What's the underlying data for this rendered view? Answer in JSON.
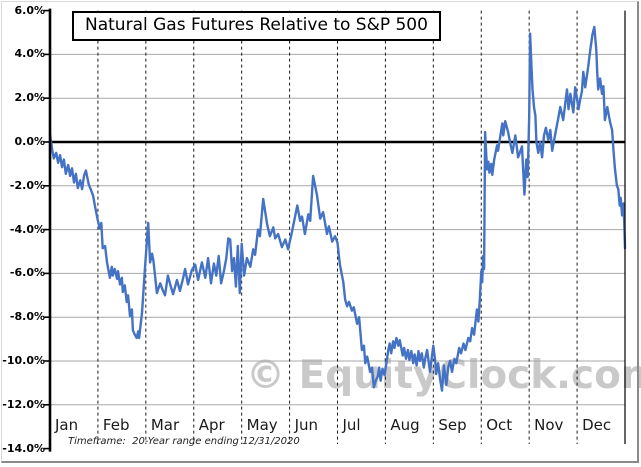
{
  "title": "Natural Gas Futures Relative to S&P 500",
  "footnote": "Timeframe:  20-Year range ending 12/31/2020",
  "watermark": "© EquityClock.com",
  "colors": {
    "line": "#4472C4",
    "grid": "#A8A8A8",
    "zero_line": "#000000",
    "axis": "#000000",
    "month_dashed": "#1A1A1A",
    "watermark": "#C9C9C9",
    "text": "#000000"
  },
  "chart_data": {
    "type": "line",
    "title": "Natural Gas Futures Relative to S&P 500",
    "xlabel": "",
    "ylabel": "",
    "x_categories": [
      "Jan",
      "Feb",
      "Mar",
      "Apr",
      "May",
      "Jun",
      "Jul",
      "Aug",
      "Sep",
      "Oct",
      "Nov",
      "Dec"
    ],
    "y_tick_labels": [
      "6.0%",
      "4.0%",
      "2.0%",
      "0.0%",
      "-2.0%",
      "-4.0%",
      "-6.0%",
      "-8.0%",
      "-10.0%",
      "-12.0%",
      "-14.0%"
    ],
    "y_tick_values": [
      6,
      4,
      2,
      0,
      -2,
      -4,
      -6,
      -8,
      -10,
      -12,
      -14
    ],
    "ylim": [
      -14,
      6
    ],
    "x_unit": "months 0-12 across one year",
    "y_unit": "percent relative performance",
    "grid": {
      "horizontal": true,
      "vertical": "dashed month boundaries",
      "zero_line_bold": true
    },
    "legend_position": "none",
    "annotations": [
      "© EquityClock.com watermark",
      "Timeframe:  20-Year range ending 12/31/2020"
    ],
    "series": [
      {
        "color": "#4472C4",
        "points": [
          [
            0.0,
            0.35
          ],
          [
            0.03,
            -0.1
          ],
          [
            0.05,
            -0.4
          ],
          [
            0.08,
            -0.75
          ],
          [
            0.13,
            -0.5
          ],
          [
            0.17,
            -0.95
          ],
          [
            0.21,
            -0.6
          ],
          [
            0.25,
            -1.15
          ],
          [
            0.29,
            -0.8
          ],
          [
            0.33,
            -1.45
          ],
          [
            0.38,
            -1.05
          ],
          [
            0.42,
            -1.55
          ],
          [
            0.46,
            -1.2
          ],
          [
            0.5,
            -1.85
          ],
          [
            0.54,
            -1.45
          ],
          [
            0.58,
            -2.1
          ],
          [
            0.63,
            -1.75
          ],
          [
            0.67,
            -2.15
          ],
          [
            0.71,
            -1.55
          ],
          [
            0.75,
            -1.3
          ],
          [
            0.81,
            -1.95
          ],
          [
            0.85,
            -2.15
          ],
          [
            0.9,
            -2.45
          ],
          [
            0.95,
            -3.05
          ],
          [
            1.0,
            -3.6
          ],
          [
            1.04,
            -3.95
          ],
          [
            1.07,
            -3.7
          ],
          [
            1.1,
            -4.85
          ],
          [
            1.15,
            -4.75
          ],
          [
            1.19,
            -5.5
          ],
          [
            1.25,
            -6.2
          ],
          [
            1.29,
            -5.7
          ],
          [
            1.31,
            -6.1
          ],
          [
            1.35,
            -5.8
          ],
          [
            1.4,
            -6.25
          ],
          [
            1.42,
            -5.9
          ],
          [
            1.46,
            -6.5
          ],
          [
            1.5,
            -6.2
          ],
          [
            1.52,
            -6.85
          ],
          [
            1.56,
            -6.55
          ],
          [
            1.6,
            -7.3
          ],
          [
            1.63,
            -7.0
          ],
          [
            1.67,
            -7.95
          ],
          [
            1.71,
            -7.65
          ],
          [
            1.73,
            -8.6
          ],
          [
            1.77,
            -8.8
          ],
          [
            1.81,
            -8.95
          ],
          [
            1.84,
            -8.65
          ],
          [
            1.86,
            -8.95
          ],
          [
            1.92,
            -7.8
          ],
          [
            1.95,
            -6.85
          ],
          [
            1.98,
            -5.8
          ],
          [
            2.05,
            -3.7
          ],
          [
            2.09,
            -5.5
          ],
          [
            2.13,
            -5.1
          ],
          [
            2.16,
            -5.45
          ],
          [
            2.23,
            -6.9
          ],
          [
            2.3,
            -6.45
          ],
          [
            2.35,
            -6.75
          ],
          [
            2.4,
            -7.0
          ],
          [
            2.46,
            -6.1
          ],
          [
            2.52,
            -6.6
          ],
          [
            2.57,
            -6.95
          ],
          [
            2.65,
            -6.3
          ],
          [
            2.71,
            -6.8
          ],
          [
            2.78,
            -6.2
          ],
          [
            2.82,
            -5.8
          ],
          [
            2.88,
            -6.5
          ],
          [
            2.96,
            -5.85
          ],
          [
            3.03,
            -5.6
          ],
          [
            3.09,
            -6.3
          ],
          [
            3.17,
            -5.5
          ],
          [
            3.24,
            -6.2
          ],
          [
            3.3,
            -5.3
          ],
          [
            3.36,
            -6.45
          ],
          [
            3.42,
            -5.55
          ],
          [
            3.47,
            -6.1
          ],
          [
            3.52,
            -5.2
          ],
          [
            3.57,
            -6.45
          ],
          [
            3.63,
            -5.9
          ],
          [
            3.68,
            -5.3
          ],
          [
            3.72,
            -4.4
          ],
          [
            3.76,
            -4.45
          ],
          [
            3.8,
            -5.9
          ],
          [
            3.84,
            -5.3
          ],
          [
            3.88,
            -6.6
          ],
          [
            3.92,
            -4.75
          ],
          [
            3.96,
            -6.9
          ],
          [
            4.0,
            -4.65
          ],
          [
            4.05,
            -6.1
          ],
          [
            4.11,
            -5.3
          ],
          [
            4.18,
            -5.7
          ],
          [
            4.24,
            -4.9
          ],
          [
            4.28,
            -5.15
          ],
          [
            4.34,
            -4.0
          ],
          [
            4.38,
            -4.3
          ],
          [
            4.45,
            -2.6
          ],
          [
            4.53,
            -3.75
          ],
          [
            4.59,
            -4.3
          ],
          [
            4.66,
            -3.9
          ],
          [
            4.7,
            -4.4
          ],
          [
            4.76,
            -4.2
          ],
          [
            4.84,
            -4.8
          ],
          [
            4.91,
            -4.45
          ],
          [
            4.97,
            -4.9
          ],
          [
            5.05,
            -4.1
          ],
          [
            5.16,
            -2.9
          ],
          [
            5.22,
            -3.6
          ],
          [
            5.26,
            -3.4
          ],
          [
            5.32,
            -4.2
          ],
          [
            5.39,
            -3.3
          ],
          [
            5.43,
            -3.6
          ],
          [
            5.49,
            -1.55
          ],
          [
            5.57,
            -2.4
          ],
          [
            5.64,
            -3.5
          ],
          [
            5.7,
            -3.2
          ],
          [
            5.78,
            -4.2
          ],
          [
            5.82,
            -3.85
          ],
          [
            5.89,
            -4.55
          ],
          [
            5.95,
            -4.3
          ],
          [
            6.0,
            -4.6
          ],
          [
            6.05,
            -5.6
          ],
          [
            6.12,
            -6.4
          ],
          [
            6.16,
            -7.2
          ],
          [
            6.2,
            -7.5
          ],
          [
            6.24,
            -7.3
          ],
          [
            6.3,
            -7.7
          ],
          [
            6.34,
            -7.55
          ],
          [
            6.41,
            -8.3
          ],
          [
            6.45,
            -8.0
          ],
          [
            6.51,
            -9.5
          ],
          [
            6.55,
            -9.3
          ],
          [
            6.58,
            -10.1
          ],
          [
            6.62,
            -9.8
          ],
          [
            6.68,
            -10.5
          ],
          [
            6.72,
            -10.3
          ],
          [
            6.76,
            -11.2
          ],
          [
            6.8,
            -10.9
          ],
          [
            6.84,
            -10.7
          ],
          [
            6.87,
            -10.3
          ],
          [
            6.9,
            -10.9
          ],
          [
            6.94,
            -10.35
          ],
          [
            6.98,
            -10.65
          ],
          [
            7.02,
            -10.1
          ],
          [
            7.06,
            -9.5
          ],
          [
            7.09,
            -9.2
          ],
          [
            7.12,
            -9.65
          ],
          [
            7.16,
            -9.1
          ],
          [
            7.19,
            -9.4
          ],
          [
            7.23,
            -8.95
          ],
          [
            7.27,
            -9.3
          ],
          [
            7.3,
            -9.05
          ],
          [
            7.36,
            -9.75
          ],
          [
            7.39,
            -9.4
          ],
          [
            7.43,
            -9.9
          ],
          [
            7.47,
            -9.5
          ],
          [
            7.5,
            -9.95
          ],
          [
            7.54,
            -9.55
          ],
          [
            7.58,
            -10.1
          ],
          [
            7.61,
            -9.7
          ],
          [
            7.65,
            -10.2
          ],
          [
            7.69,
            -9.55
          ],
          [
            7.72,
            -10.0
          ],
          [
            7.76,
            -9.65
          ],
          [
            7.8,
            -10.3
          ],
          [
            7.83,
            -9.9
          ],
          [
            7.87,
            -9.5
          ],
          [
            7.93,
            -10.5
          ],
          [
            8.0,
            -9.3
          ],
          [
            8.04,
            -10.0
          ],
          [
            8.06,
            -10.6
          ],
          [
            8.1,
            -10.1
          ],
          [
            8.14,
            -10.8
          ],
          [
            8.18,
            -11.35
          ],
          [
            8.22,
            -10.2
          ],
          [
            8.27,
            -11.1
          ],
          [
            8.31,
            -10.3
          ],
          [
            8.35,
            -10.0
          ],
          [
            8.39,
            -10.5
          ],
          [
            8.44,
            -9.9
          ],
          [
            8.48,
            -10.1
          ],
          [
            8.54,
            -9.4
          ],
          [
            8.58,
            -9.65
          ],
          [
            8.63,
            -9.2
          ],
          [
            8.67,
            -9.5
          ],
          [
            8.73,
            -8.95
          ],
          [
            8.77,
            -9.1
          ],
          [
            8.81,
            -8.5
          ],
          [
            8.85,
            -8.8
          ],
          [
            8.91,
            -7.65
          ],
          [
            8.94,
            -8.2
          ],
          [
            8.97,
            -7.2
          ],
          [
            9.0,
            -5.9
          ],
          [
            9.02,
            -6.4
          ],
          [
            9.04,
            -5.2
          ],
          [
            9.06,
            -5.8
          ],
          [
            9.08,
            0.45
          ],
          [
            9.12,
            -1.25
          ],
          [
            9.15,
            -0.9
          ],
          [
            9.17,
            -1.4
          ],
          [
            9.21,
            -1.0
          ],
          [
            9.23,
            -1.5
          ],
          [
            9.27,
            -0.8
          ],
          [
            9.33,
            -0.15
          ],
          [
            9.35,
            -0.4
          ],
          [
            9.44,
            0.85
          ],
          [
            9.46,
            0.3
          ],
          [
            9.5,
            0.95
          ],
          [
            9.56,
            0.45
          ],
          [
            9.6,
            0.0
          ],
          [
            9.65,
            -0.5
          ],
          [
            9.71,
            0.3
          ],
          [
            9.77,
            -0.7
          ],
          [
            9.81,
            -0.45
          ],
          [
            9.85,
            -0.2
          ],
          [
            9.9,
            -2.4
          ],
          [
            9.94,
            -0.8
          ],
          [
            9.97,
            -1.6
          ],
          [
            10.0,
            1.2
          ],
          [
            10.02,
            4.95
          ],
          [
            10.05,
            3.3
          ],
          [
            10.07,
            2.4
          ],
          [
            10.1,
            1.6
          ],
          [
            10.13,
            1.2
          ],
          [
            10.15,
            0.0
          ],
          [
            10.19,
            -0.5
          ],
          [
            10.23,
            0.0
          ],
          [
            10.27,
            -0.7
          ],
          [
            10.31,
            0.3
          ],
          [
            10.35,
            0.65
          ],
          [
            10.4,
            0.1
          ],
          [
            10.44,
            0.55
          ],
          [
            10.48,
            -0.4
          ],
          [
            10.54,
            0.3
          ],
          [
            10.6,
            1.0
          ],
          [
            10.65,
            1.6
          ],
          [
            10.71,
            1.0
          ],
          [
            10.79,
            2.4
          ],
          [
            10.82,
            1.5
          ],
          [
            10.86,
            2.2
          ],
          [
            10.92,
            1.35
          ],
          [
            10.96,
            2.5
          ],
          [
            11.0,
            1.95
          ],
          [
            11.03,
            1.5
          ],
          [
            11.06,
            1.9
          ],
          [
            11.1,
            2.3
          ],
          [
            11.13,
            3.2
          ],
          [
            11.17,
            2.5
          ],
          [
            11.23,
            3.4
          ],
          [
            11.27,
            4.1
          ],
          [
            11.32,
            4.9
          ],
          [
            11.36,
            5.25
          ],
          [
            11.4,
            4.2
          ],
          [
            11.42,
            3.2
          ],
          [
            11.44,
            2.4
          ],
          [
            11.48,
            2.9
          ],
          [
            11.52,
            2.2
          ],
          [
            11.55,
            2.55
          ],
          [
            11.58,
            1.0
          ],
          [
            11.63,
            1.6
          ],
          [
            11.69,
            0.9
          ],
          [
            11.73,
            0.55
          ],
          [
            11.76,
            -0.4
          ],
          [
            11.79,
            -1.2
          ],
          [
            11.83,
            -2.0
          ],
          [
            11.86,
            -2.15
          ],
          [
            11.89,
            -2.9
          ],
          [
            11.91,
            -2.55
          ],
          [
            11.94,
            -3.35
          ],
          [
            11.97,
            -2.8
          ],
          [
            12.0,
            -4.85
          ]
        ]
      }
    ]
  }
}
